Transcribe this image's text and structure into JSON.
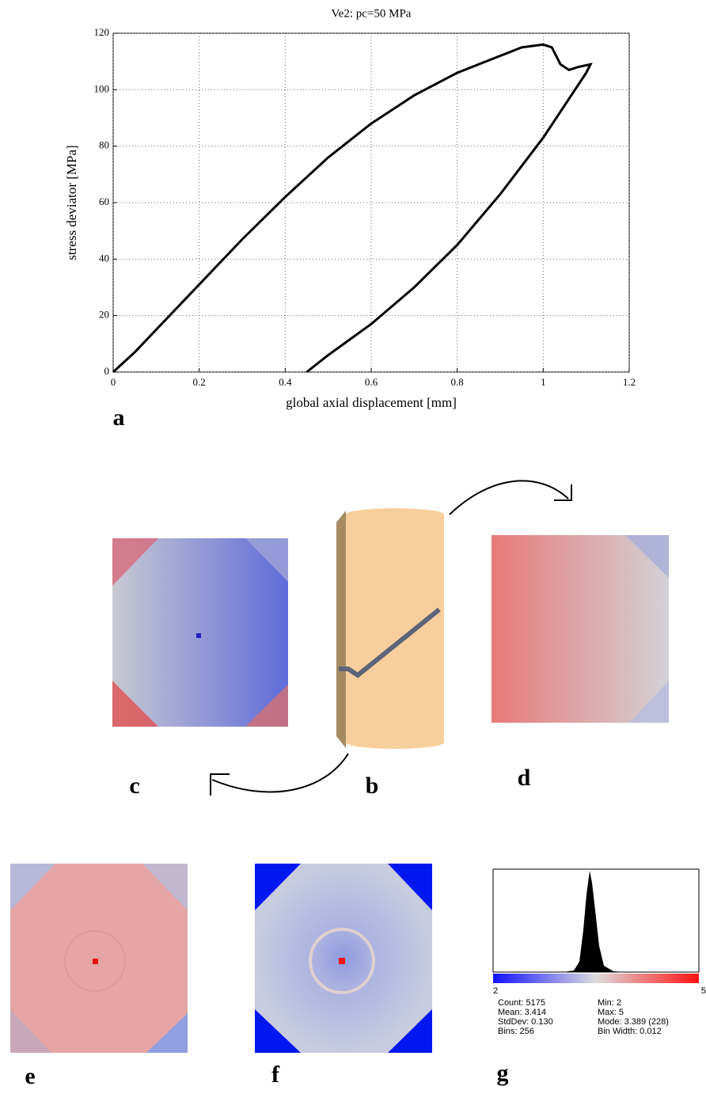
{
  "chart_data": {
    "type": "line",
    "title": "Ve2: pc=50 MPa",
    "x_label": "global axial displacement [mm]",
    "y_label": "stress deviator [MPa]",
    "x": [
      0,
      0.05,
      0.1,
      0.2,
      0.3,
      0.4,
      0.5,
      0.6,
      0.7,
      0.8,
      0.9,
      0.95,
      1.0,
      1.02,
      1.04,
      1.06,
      1.08,
      1.11,
      1.1,
      1.0,
      0.9,
      0.8,
      0.7,
      0.6,
      0.5,
      0.45
    ],
    "values": [
      0,
      7,
      15,
      31,
      47,
      62,
      76,
      88,
      98,
      106,
      112,
      115,
      116,
      115,
      109,
      107,
      108,
      109,
      106,
      83,
      63,
      45,
      30,
      17,
      6,
      0
    ],
    "color": "#000000",
    "xlim": [
      0,
      1.2
    ],
    "ylim": [
      0,
      120
    ],
    "xticks": [
      0,
      0.2,
      0.4,
      0.6,
      0.8,
      1,
      1.2
    ],
    "yticks": [
      0,
      20,
      40,
      60,
      80,
      100,
      120
    ],
    "grid": true
  },
  "panel_labels": [
    "a",
    "b",
    "c",
    "d",
    "e",
    "f",
    "g"
  ],
  "histogram": {
    "axis_min_label": "2",
    "axis_max_label": "5",
    "stats": [
      "Count: 5175",
      "Mean: 3.414",
      "StdDev: 0.130",
      "Bins: 256",
      "Min: 2",
      "Max: 5",
      "Mode: 3.389 (228)",
      "Bin Width: 0.012"
    ]
  }
}
